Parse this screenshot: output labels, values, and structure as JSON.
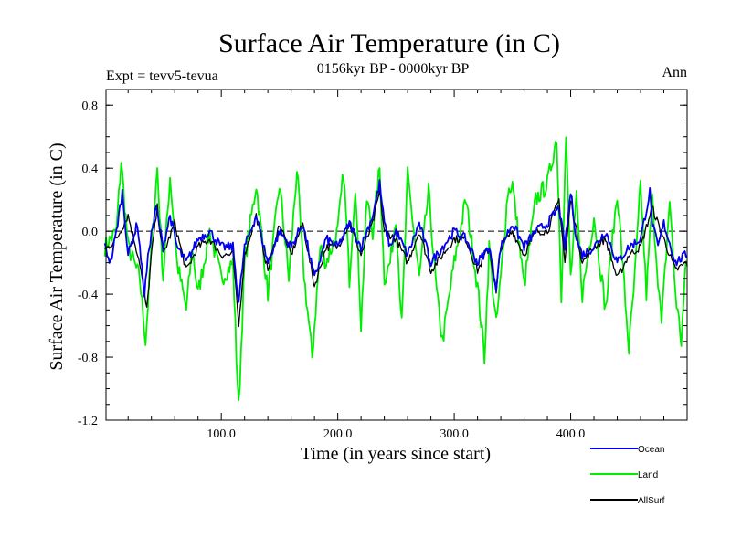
{
  "chart_data": {
    "type": "line",
    "title": "Surface Air Temperature (in C)",
    "subtitle": "0156kyr BP - 0000kyr BP",
    "top_left_label": "Expt = tevv5-tevua",
    "top_right_label": "Ann",
    "xlabel": "Time (in years since start)",
    "ylabel": "Surface Air Temperature (in C)",
    "xlim": [
      1,
      500
    ],
    "ylim": [
      -1.2,
      0.9
    ],
    "xticks": [
      100,
      200,
      300,
      400
    ],
    "xtick_labels": [
      "100.0",
      "200.0",
      "300.0",
      "400.0"
    ],
    "yticks": [
      -1.2,
      -0.8,
      -0.4,
      0.0,
      0.4,
      0.8
    ],
    "ytick_labels": [
      "-1.2",
      "-0.8",
      "-0.4",
      "0.0",
      "0.4",
      "0.8"
    ],
    "reference_line": 0.0,
    "series": [
      {
        "name": "Land",
        "color": "#00ee00",
        "x": [
          0,
          10,
          14,
          20,
          30,
          35,
          40,
          45,
          50,
          56,
          62,
          70,
          75,
          80,
          90,
          100,
          110,
          113,
          115,
          120,
          130,
          140,
          150,
          158,
          165,
          170,
          178,
          185,
          190,
          200,
          205,
          210,
          215,
          220,
          225,
          230,
          236,
          240,
          245,
          250,
          255,
          260,
          270,
          278,
          285,
          290,
          300,
          310,
          320,
          326,
          330,
          336,
          340,
          346,
          350,
          360,
          370,
          380,
          388,
          392,
          396,
          400,
          405,
          410,
          420,
          430,
          440,
          450,
          455,
          460,
          465,
          470,
          478,
          485,
          490,
          495,
          499
        ],
        "values": [
          -0.1,
          0.0,
          0.45,
          -0.1,
          -0.3,
          -0.7,
          -0.1,
          0.4,
          -0.3,
          0.35,
          -0.2,
          -0.5,
          -0.1,
          -0.4,
          0.0,
          -0.3,
          -0.2,
          -0.8,
          -1.12,
          -0.2,
          0.3,
          -0.4,
          0.3,
          -0.3,
          0.4,
          -0.2,
          -0.8,
          -0.1,
          -0.2,
          0.0,
          0.38,
          -0.3,
          0.3,
          -0.6,
          0.2,
          0.0,
          0.4,
          -0.3,
          -0.2,
          0.1,
          -0.6,
          0.35,
          -0.3,
          0.25,
          -0.4,
          -0.7,
          -0.2,
          0.2,
          -0.35,
          -0.8,
          -0.1,
          -0.6,
          -0.3,
          0.25,
          0.3,
          -0.35,
          0.2,
          0.3,
          0.6,
          -0.4,
          0.6,
          -0.3,
          0.2,
          -0.4,
          0.1,
          -0.5,
          0.25,
          -0.75,
          -0.3,
          0.3,
          -0.4,
          0.2,
          -0.6,
          0.2,
          -0.4,
          -0.7,
          -0.2
        ]
      },
      {
        "name": "Ocean",
        "color": "#0000ee",
        "x": [
          0,
          5,
          10,
          15,
          20,
          28,
          34,
          38,
          44,
          50,
          56,
          62,
          70,
          80,
          90,
          100,
          110,
          115,
          120,
          130,
          140,
          150,
          160,
          170,
          180,
          190,
          200,
          210,
          220,
          230,
          236,
          240,
          245,
          250,
          260,
          270,
          280,
          290,
          300,
          310,
          320,
          330,
          336,
          340,
          350,
          360,
          370,
          380,
          390,
          395,
          400,
          405,
          410,
          420,
          430,
          440,
          450,
          460,
          468,
          470,
          475,
          480,
          490,
          499
        ],
        "values": [
          -0.1,
          -0.2,
          0.0,
          0.25,
          -0.15,
          0.05,
          -0.4,
          -0.1,
          0.15,
          -0.1,
          0.1,
          -0.1,
          -0.2,
          -0.05,
          0.0,
          -0.1,
          -0.1,
          -0.45,
          -0.1,
          0.1,
          -0.2,
          0.0,
          -0.1,
          0.05,
          -0.3,
          -0.05,
          -0.1,
          0.05,
          -0.1,
          0.1,
          0.3,
          0.05,
          -0.1,
          0.0,
          -0.15,
          0.05,
          -0.2,
          -0.1,
          0.0,
          -0.05,
          -0.2,
          -0.1,
          -0.35,
          -0.1,
          0.05,
          -0.1,
          0.0,
          0.05,
          0.15,
          -0.1,
          0.25,
          -0.05,
          -0.15,
          -0.1,
          0.0,
          -0.2,
          -0.1,
          -0.05,
          0.25,
          0.05,
          -0.1,
          0.05,
          -0.2,
          -0.15
        ]
      },
      {
        "name": "AllSurf",
        "color": "#000000",
        "x": [
          0,
          10,
          20,
          30,
          36,
          40,
          45,
          50,
          60,
          70,
          80,
          90,
          100,
          110,
          115,
          120,
          130,
          140,
          150,
          160,
          170,
          180,
          190,
          200,
          210,
          220,
          230,
          236,
          240,
          250,
          260,
          270,
          280,
          290,
          300,
          310,
          320,
          330,
          336,
          340,
          350,
          360,
          370,
          380,
          390,
          395,
          400,
          410,
          420,
          430,
          440,
          450,
          460,
          470,
          480,
          490,
          499
        ],
        "values": [
          -0.12,
          -0.05,
          0.1,
          -0.2,
          -0.5,
          -0.15,
          0.15,
          -0.15,
          0.05,
          -0.25,
          -0.1,
          -0.05,
          -0.15,
          -0.15,
          -0.6,
          -0.15,
          0.1,
          -0.25,
          0.05,
          -0.15,
          0.05,
          -0.35,
          -0.1,
          -0.1,
          0.05,
          -0.15,
          0.05,
          0.25,
          0.0,
          -0.05,
          -0.2,
          0.0,
          -0.25,
          -0.15,
          -0.05,
          -0.05,
          -0.25,
          -0.1,
          -0.4,
          -0.1,
          0.0,
          -0.15,
          0.0,
          0.0,
          0.2,
          -0.2,
          0.2,
          -0.2,
          -0.1,
          -0.05,
          -0.3,
          -0.15,
          -0.1,
          0.15,
          -0.05,
          -0.25,
          -0.2
        ]
      }
    ],
    "legend": [
      {
        "name": "Ocean",
        "color": "#0000ee"
      },
      {
        "name": "Land",
        "color": "#00ee00"
      },
      {
        "name": "AllSurf",
        "color": "#000000"
      }
    ],
    "legend_position": "bottom-right"
  }
}
